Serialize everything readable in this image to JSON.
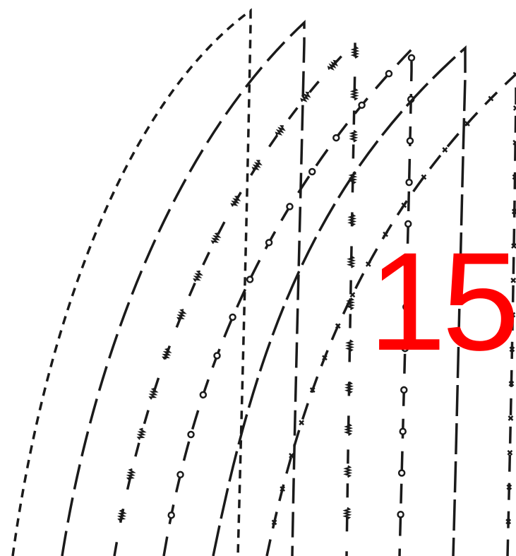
{
  "label": {
    "text": "15",
    "color": "#ff0000"
  },
  "line_color": "#1a1a1a",
  "background": "#ffffff"
}
